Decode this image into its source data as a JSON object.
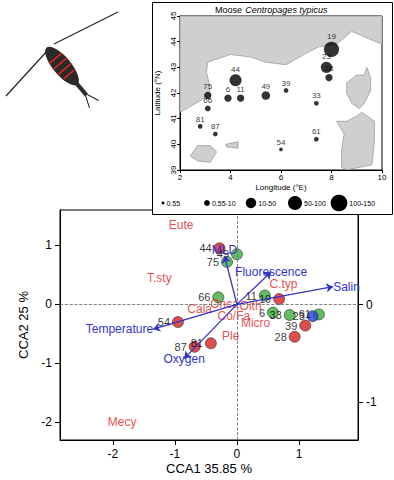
{
  "chart_data": {
    "type": "scatter",
    "xlabel": "CCA1 35.85 %",
    "ylabel": "CCA2 25 %",
    "xlim": [
      -2.85,
      1.95
    ],
    "xticks": [
      -2,
      -1,
      0,
      1
    ],
    "ylim": [
      -2.3,
      1.6
    ],
    "yticks": [
      -2,
      -1,
      0,
      1
    ],
    "y2lim": [
      -1.39,
      0.97
    ],
    "y2ticks": [
      -1,
      0
    ],
    "sites": {
      "labels": [
        "44",
        "75",
        "49",
        "66",
        "11",
        "19",
        "6",
        "33",
        "61",
        "23",
        "39",
        "28",
        "54",
        "87",
        "81"
      ],
      "x": [
        -0.28,
        -0.16,
        0.0,
        -0.3,
        0.45,
        0.68,
        0.58,
        0.85,
        1.32,
        1.22,
        1.1,
        0.93,
        -0.95,
        -0.68,
        -0.42
      ],
      "y": [
        0.95,
        0.72,
        0.85,
        0.12,
        0.15,
        0.09,
        -0.14,
        -0.18,
        -0.17,
        -0.2,
        -0.36,
        -0.55,
        -0.3,
        -0.72,
        -0.66
      ],
      "colors": [
        "#d62020",
        "#3cae3c",
        "#3cae3c",
        "#3cae3c",
        "#3cae3c",
        "#d62020",
        "#3cae3c",
        "#3cae3c",
        "#3cae3c",
        "#2040d8",
        "#d62020",
        "#d62020",
        "#d62020",
        "#d62020",
        "#d62020"
      ]
    },
    "species": {
      "axis": "y2",
      "color": "#e3211c",
      "labels": [
        "Eute",
        "T.sty",
        "C.typ",
        "Oith",
        "Onca",
        "Cala",
        "Co/Fa",
        "Micro",
        "Ple",
        "Mecy"
      ],
      "x": [
        -0.9,
        -1.25,
        0.75,
        0.22,
        -0.2,
        -0.6,
        -0.05,
        0.3,
        -0.1,
        -1.85
      ],
      "y": [
        0.82,
        0.27,
        0.21,
        -0.01,
        0.01,
        -0.05,
        -0.12,
        -0.19,
        -0.32,
        -1.21
      ]
    },
    "vectors": {
      "color": "#3333cc",
      "labels": [
        "MLD",
        "Fluorescence",
        "Salinity",
        "Temperature",
        "Oxygen"
      ],
      "x": [
        -0.2,
        0.55,
        1.55,
        -1.35,
        -0.85
      ],
      "y": [
        0.82,
        0.55,
        0.3,
        -0.42,
        -0.92
      ]
    },
    "inset": {
      "type": "map",
      "title": "Moose",
      "species": "Centropages typicus",
      "xlabel": "Longitude (°E)",
      "ylabel": "Latitude (°N)",
      "xlim": [
        2,
        10
      ],
      "xticks": [
        2,
        4,
        6,
        8,
        10
      ],
      "ylim": [
        39,
        45
      ],
      "yticks": [
        39,
        40,
        41,
        42,
        43,
        44,
        45
      ],
      "stations": {
        "labels": [
          "19",
          "23",
          "28",
          "44",
          "75",
          "6",
          "11",
          "49",
          "39",
          "33",
          "66",
          "81",
          "87",
          "61",
          "54"
        ],
        "lon": [
          8.0,
          7.8,
          7.9,
          4.2,
          3.1,
          3.9,
          4.4,
          5.4,
          6.2,
          7.4,
          3.1,
          2.8,
          3.4,
          7.4,
          6.0
        ],
        "lat": [
          43.7,
          43.0,
          42.6,
          42.5,
          41.9,
          41.8,
          41.8,
          41.9,
          42.1,
          41.6,
          41.4,
          40.7,
          40.4,
          40.2,
          39.8
        ],
        "values": [
          120,
          60,
          20,
          70,
          20,
          20,
          20,
          30,
          5,
          5,
          10,
          5,
          5,
          5,
          2
        ]
      },
      "land": [
        [
          [
            2,
            45
          ],
          [
            2,
            41.25
          ],
          [
            2.2,
            41.35
          ],
          [
            2.8,
            41.7
          ],
          [
            3.2,
            41.95
          ],
          [
            3.15,
            42.4
          ],
          [
            3.05,
            42.8
          ],
          [
            3.1,
            43.2
          ],
          [
            4.0,
            43.5
          ],
          [
            4.8,
            43.4
          ],
          [
            5.4,
            43.2
          ],
          [
            6.2,
            43.1
          ],
          [
            6.9,
            43.5
          ],
          [
            7.5,
            43.8
          ],
          [
            8.2,
            43.9
          ],
          [
            8.8,
            44.4
          ],
          [
            9.5,
            44.1
          ],
          [
            10,
            43.9
          ],
          [
            10,
            45
          ]
        ],
        [
          [
            9.4,
            43.0
          ],
          [
            9.55,
            42.6
          ],
          [
            9.55,
            42.1
          ],
          [
            9.3,
            41.6
          ],
          [
            9.1,
            41.4
          ],
          [
            8.8,
            41.6
          ],
          [
            8.6,
            42.0
          ],
          [
            8.6,
            42.4
          ],
          [
            9.0,
            42.7
          ],
          [
            9.3,
            42.7
          ]
        ],
        [
          [
            9.2,
            41.25
          ],
          [
            9.7,
            40.9
          ],
          [
            9.7,
            40.1
          ],
          [
            9.6,
            39.2
          ],
          [
            9.1,
            39.1
          ],
          [
            8.6,
            39.0
          ],
          [
            8.4,
            39.1
          ],
          [
            8.4,
            39.8
          ],
          [
            8.5,
            40.4
          ],
          [
            8.2,
            40.9
          ],
          [
            8.6,
            40.9
          ],
          [
            9.0,
            41.1
          ]
        ],
        [
          [
            2.4,
            39.55
          ],
          [
            2.7,
            39.95
          ],
          [
            3.2,
            39.95
          ],
          [
            3.45,
            39.7
          ],
          [
            3.2,
            39.3
          ],
          [
            2.7,
            39.35
          ]
        ],
        [
          [
            3.8,
            40.0
          ],
          [
            4.3,
            40.1
          ],
          [
            4.3,
            39.85
          ],
          [
            3.85,
            39.9
          ]
        ]
      ],
      "size_legend": [
        {
          "label": "0.55",
          "value": 0.55
        },
        {
          "label": "0.55-10",
          "value": 10
        },
        {
          "label": "10-50",
          "value": 50
        },
        {
          "label": "50-100",
          "value": 100
        },
        {
          "label": "100-150",
          "value": 150
        }
      ]
    }
  }
}
